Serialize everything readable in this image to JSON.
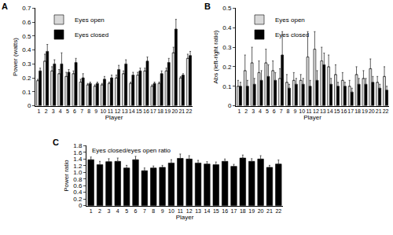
{
  "chart_data": [
    {
      "type": "bar",
      "title": "A",
      "x_label": "Player",
      "y_label": "Power (watts)",
      "categories": [
        "1",
        "2",
        "3",
        "4",
        "5",
        "6",
        "7",
        "8",
        "9",
        "10",
        "11",
        "12",
        "13",
        "14",
        "15",
        "16",
        "17",
        "18",
        "19",
        "20",
        "21",
        "22"
      ],
      "series": [
        {
          "name": "Eyes open",
          "color": "#d9d9d9",
          "values": [
            0.18,
            0.32,
            0.25,
            0.23,
            0.21,
            0.23,
            0.17,
            0.15,
            0.14,
            0.15,
            0.16,
            0.2,
            0.23,
            0.16,
            0.22,
            0.25,
            0.14,
            0.16,
            0.25,
            0.38,
            0.2,
            0.34
          ],
          "errors": [
            0.01,
            0.05,
            0.03,
            0.03,
            0.03,
            0.02,
            0.02,
            0.01,
            0.01,
            0.01,
            0.01,
            0.02,
            0.02,
            0.01,
            0.02,
            0.02,
            0.01,
            0.01,
            0.02,
            0.04,
            0.01,
            0.03
          ]
        },
        {
          "name": "Eyes closed",
          "color": "#000000",
          "values": [
            0.25,
            0.39,
            0.3,
            0.3,
            0.24,
            0.31,
            0.2,
            0.16,
            0.16,
            0.19,
            0.2,
            0.26,
            0.3,
            0.22,
            0.25,
            0.32,
            0.16,
            0.23,
            0.31,
            0.55,
            0.22,
            0.36
          ],
          "errors": [
            0.02,
            0.05,
            0.03,
            0.08,
            0.02,
            0.03,
            0.03,
            0.01,
            0.01,
            0.02,
            0.02,
            0.03,
            0.03,
            0.02,
            0.02,
            0.03,
            0.01,
            0.02,
            0.03,
            0.07,
            0.01,
            0.03
          ]
        }
      ],
      "ylim": [
        0,
        0.7
      ],
      "yticks": [
        0,
        0.1,
        0.2,
        0.3,
        0.4,
        0.5,
        0.6,
        0.7
      ],
      "legend": "upper left",
      "grid": false
    },
    {
      "type": "bar",
      "title": "B",
      "x_label": "Player",
      "y_label": "Abs (left-right ratio)",
      "categories": [
        "1",
        "2",
        "3",
        "4",
        "5",
        "6",
        "7",
        "8",
        "9",
        "10",
        "11",
        "12",
        "13",
        "14",
        "15",
        "16",
        "17",
        "18",
        "19",
        "20",
        "21",
        "22"
      ],
      "series": [
        {
          "name": "Eyes open",
          "color": "#d9d9d9",
          "values": [
            0.1,
            0.18,
            0.22,
            0.17,
            0.22,
            0.18,
            0.14,
            0.12,
            0.13,
            0.13,
            0.25,
            0.29,
            0.23,
            0.2,
            0.16,
            0.13,
            0.1,
            0.16,
            0.14,
            0.19,
            0.12,
            0.15
          ],
          "errors": [
            0.03,
            0.08,
            0.08,
            0.06,
            0.07,
            0.05,
            0.05,
            0.04,
            0.04,
            0.03,
            0.13,
            0.09,
            0.07,
            0.06,
            0.05,
            0.04,
            0.03,
            0.04,
            0.04,
            0.05,
            0.03,
            0.05
          ]
        },
        {
          "name": "Eyes closed",
          "color": "#000000",
          "values": [
            0.1,
            0.1,
            0.11,
            0.13,
            0.15,
            0.13,
            0.26,
            0.09,
            0.11,
            0.11,
            0.1,
            0.13,
            0.21,
            0.11,
            0.1,
            0.1,
            0.07,
            0.11,
            0.11,
            0.12,
            0.09,
            0.08
          ],
          "errors": [
            0.02,
            0.03,
            0.03,
            0.05,
            0.06,
            0.04,
            0.12,
            0.02,
            0.03,
            0.03,
            0.03,
            0.05,
            0.06,
            0.03,
            0.02,
            0.02,
            0.02,
            0.03,
            0.03,
            0.03,
            0.02,
            0.02
          ]
        }
      ],
      "ylim": [
        0,
        0.5
      ],
      "yticks": [
        0,
        0.1,
        0.2,
        0.3,
        0.4,
        0.5
      ],
      "legend": "upper left",
      "grid": false
    },
    {
      "type": "bar",
      "title": "C",
      "x_label": "Player",
      "y_label": "Power ratio",
      "annotations": [
        "Eyes closed/eyes open ratio"
      ],
      "categories": [
        "1",
        "2",
        "3",
        "4",
        "5",
        "6",
        "7",
        "8",
        "9",
        "10",
        "11",
        "12",
        "13",
        "14",
        "15",
        "16",
        "17",
        "18",
        "19",
        "20",
        "21",
        "22"
      ],
      "series": [
        {
          "name": "Eyes closed/eyes open ratio",
          "color": "#000000",
          "values": [
            1.38,
            1.23,
            1.32,
            1.33,
            1.13,
            1.38,
            1.05,
            1.13,
            1.15,
            1.28,
            1.42,
            1.4,
            1.28,
            1.25,
            1.23,
            1.33,
            1.18,
            1.43,
            1.33,
            1.4,
            1.15,
            1.25
          ],
          "errors": [
            0.08,
            0.1,
            0.09,
            0.1,
            0.08,
            0.1,
            0.08,
            0.06,
            0.06,
            0.1,
            0.13,
            0.1,
            0.08,
            0.07,
            0.08,
            0.07,
            0.06,
            0.09,
            0.08,
            0.1,
            0.06,
            0.12
          ]
        }
      ],
      "ylim": [
        0,
        1.8
      ],
      "yticks": [
        0,
        0.2,
        0.4,
        0.6,
        0.8,
        {
          "value": 1,
          "label": "1.0"
        },
        1.2,
        1.4,
        1.6,
        1.8
      ],
      "grid": false
    }
  ]
}
